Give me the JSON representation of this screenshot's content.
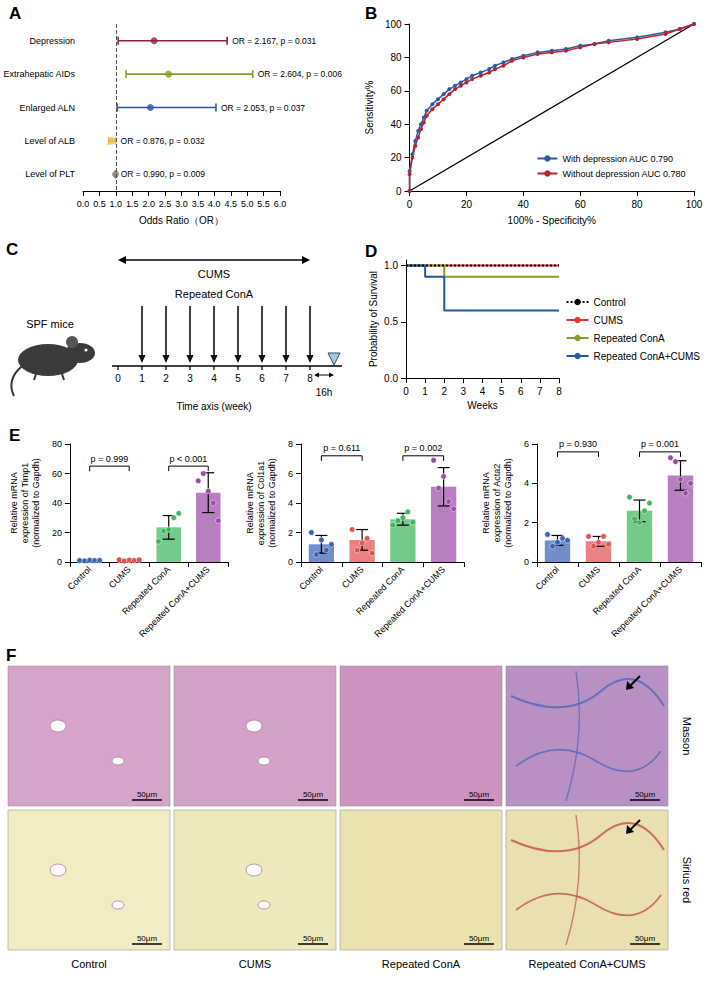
{
  "chart_data": [
    {
      "panel_label": "A",
      "type": "forest",
      "categories": [
        "Depression",
        "Extrahepatic AIDs",
        "Enlarged ALN",
        "Level of ALB",
        "Level of PLT"
      ],
      "values": [
        2.167,
        2.604,
        2.053,
        0.876,
        0.99
      ],
      "ci_lower": [
        1.07,
        1.31,
        1.04,
        0.78,
        0.983
      ],
      "ci_upper": [
        4.39,
        5.17,
        4.05,
        0.99,
        0.997
      ],
      "colors": [
        "#8e1f47",
        "#8f9a23",
        "#2f56a6",
        "#e6b84c",
        "#7f7f7f"
      ],
      "annotations": [
        "OR = 2.167, p = 0.031",
        "OR = 2.604, p = 0.006",
        "OR = 2.053, p = 0.037",
        "OR = 0.876, p = 0.032",
        "OR = 0.990, p = 0.009"
      ],
      "x_label": "Odds Ratio（OR）",
      "xlim": [
        0,
        6
      ],
      "xticks": [
        {
          "value": 0,
          "label": "0.0"
        },
        {
          "value": 0.5,
          "label": "0.5"
        },
        {
          "value": 1,
          "label": "1.0"
        },
        {
          "value": 1.5,
          "label": "1.5"
        },
        {
          "value": 2,
          "label": "2.0"
        },
        {
          "value": 2.5,
          "label": "2.5"
        },
        {
          "value": 3,
          "label": "3.0"
        },
        {
          "value": 3.5,
          "label": "3.5"
        },
        {
          "value": 4,
          "label": "4.0"
        },
        {
          "value": 4.5,
          "label": "4.5"
        },
        {
          "value": 5,
          "label": "5.0"
        },
        {
          "value": 5.5,
          "label": "5.5"
        },
        {
          "value": 6,
          "label": "6.0"
        }
      ],
      "reference_line": 1
    },
    {
      "panel_label": "B",
      "type": "line",
      "x": [
        0,
        0,
        1,
        2,
        3,
        4,
        5,
        6,
        8,
        10,
        12,
        14,
        16,
        18,
        20,
        22,
        25,
        28,
        30,
        33,
        36,
        40,
        45,
        50,
        55,
        60,
        65,
        70,
        80,
        90,
        95,
        100
      ],
      "series": [
        {
          "name": "With depression AUC 0.790",
          "color": "#2a5ca8",
          "values": [
            0,
            12,
            22,
            30,
            36,
            40,
            44,
            48,
            52,
            55,
            58,
            61,
            63,
            65,
            67,
            69,
            71,
            73,
            75,
            77,
            79,
            81,
            83,
            84,
            85,
            87,
            88,
            90,
            92,
            95,
            97,
            100
          ]
        },
        {
          "name": "Without depression AUC 0.780",
          "color": "#b3262e",
          "values": [
            0,
            10,
            20,
            27,
            32,
            37,
            41,
            45,
            49,
            52,
            55,
            58,
            61,
            63,
            65,
            67,
            69,
            71,
            73,
            75,
            78,
            80,
            82,
            83,
            84,
            86,
            88,
            89,
            91,
            94,
            97,
            100
          ]
        }
      ],
      "reference_line": {
        "x": [
          0,
          100
        ],
        "y": [
          0,
          100
        ]
      },
      "marker": "circle",
      "x_label": "100% - Specificity%",
      "y_label": "Sensitivity%",
      "xlim": [
        0,
        100
      ],
      "xticks": [
        0,
        20,
        40,
        60,
        80,
        100
      ],
      "ylim": [
        0,
        100
      ],
      "yticks": [
        0,
        20,
        40,
        60,
        80,
        100
      ],
      "legend": "lower right"
    },
    {
      "panel_label": "D",
      "type": "step",
      "x": [
        0,
        1,
        2,
        3,
        4,
        5,
        6,
        7,
        8
      ],
      "series": [
        {
          "name": "Control",
          "color": "#000000",
          "line_style": "dotted",
          "values": [
            1,
            1,
            1,
            1,
            1,
            1,
            1,
            1,
            1
          ]
        },
        {
          "name": "CUMS",
          "color": "#e3342f",
          "line_style": "solid",
          "values": [
            1,
            1,
            1,
            1,
            1,
            1,
            1,
            1,
            1
          ]
        },
        {
          "name": "Repeated ConA",
          "color": "#8d9a2a",
          "line_style": "solid",
          "values": [
            1,
            1,
            0.9,
            0.9,
            0.9,
            0.9,
            0.9,
            0.9,
            0.9
          ]
        },
        {
          "name": "Repeated ConA+CUMS",
          "color": "#1f5aa6",
          "line_style": "solid",
          "values": [
            1,
            0.9,
            0.6,
            0.6,
            0.6,
            0.6,
            0.6,
            0.6,
            0.6
          ]
        }
      ],
      "x_label": "Weeks",
      "y_label": "Probability of Survival",
      "xlim": [
        0,
        8
      ],
      "xticks": [
        0,
        1,
        2,
        3,
        4,
        5,
        6,
        7,
        8
      ],
      "ylim": [
        0,
        1.05
      ],
      "yticks": [
        {
          "value": 0,
          "label": "0.0"
        },
        {
          "value": 0.5,
          "label": "0.5"
        },
        {
          "value": 1,
          "label": "1.0"
        }
      ],
      "legend": "right"
    },
    {
      "panel_label": "E",
      "type": "bar",
      "categories": [
        "Control",
        "CUMS",
        "Repeated ConA",
        "Repeated ConA+CUMS"
      ],
      "values": [
        1.0,
        1.2,
        23.5,
        47.0
      ],
      "sd": [
        0.2,
        0.5,
        8.0,
        13.5
      ],
      "points": [
        [
          1.0,
          0.8,
          1.2,
          1.0,
          1.1
        ],
        [
          1.5,
          0.7,
          1.3,
          1.0,
          1.5
        ],
        [
          14,
          21,
          22,
          30,
          33
        ],
        [
          55,
          60,
          48,
          40,
          28
        ]
      ],
      "colors": [
        "#3b63b5",
        "#e0524f",
        "#3fb65c",
        "#9b4ea6"
      ],
      "y_label": "Relative mRNA expression of Timp1 (normalized to Gapdh)",
      "ylim": [
        0,
        80
      ],
      "yticks": [
        0,
        20,
        40,
        60,
        80
      ],
      "comparisons": [
        {
          "pair": [
            "Control",
            "CUMS"
          ],
          "y": 65,
          "label": "p = 0.999"
        },
        {
          "pair": [
            "Repeated ConA",
            "Repeated ConA+CUMS"
          ],
          "y": 65,
          "label": "p < 0.001"
        }
      ]
    },
    {
      "type": "bar",
      "categories": [
        "Control",
        "CUMS",
        "Repeated ConA",
        "Repeated ConA+CUMS"
      ],
      "values": [
        1.2,
        1.5,
        2.9,
        5.1
      ],
      "sd": [
        0.6,
        0.7,
        0.4,
        1.3
      ],
      "points": [
        [
          2.0,
          0.5,
          1.5,
          0.8,
          1.2
        ],
        [
          2.2,
          0.8,
          1.3,
          1.6,
          0.6
        ],
        [
          2.5,
          2.8,
          3.0,
          3.4,
          2.7
        ],
        [
          6.9,
          5.0,
          5.8,
          4.1,
          3.6
        ]
      ],
      "colors": [
        "#3b63b5",
        "#e0524f",
        "#3fb65c",
        "#9b4ea6"
      ],
      "y_label": "Relative mRNA expression of Col1a1 (normalized to Gapdh)",
      "ylim": [
        0,
        8
      ],
      "yticks": [
        0,
        2,
        4,
        6,
        8
      ],
      "comparisons": [
        {
          "pair": [
            "Control",
            "CUMS"
          ],
          "y": 7.2,
          "label": "p = 0.611"
        },
        {
          "pair": [
            "Repeated ConA",
            "Repeated ConA+CUMS"
          ],
          "y": 7.2,
          "label": "p = 0.002"
        }
      ]
    },
    {
      "type": "bar",
      "categories": [
        "Control",
        "CUMS",
        "Repeated ConA",
        "Repeated ConA+CUMS"
      ],
      "values": [
        1.1,
        1.05,
        2.6,
        4.4
      ],
      "sd": [
        0.25,
        0.25,
        0.55,
        0.75
      ],
      "points": [
        [
          1.4,
          0.8,
          1.0,
          1.2,
          1.1
        ],
        [
          1.3,
          0.8,
          1.0,
          1.3,
          0.9
        ],
        [
          3.3,
          2.2,
          2.0,
          2.6,
          3.0
        ],
        [
          5.3,
          5.1,
          4.2,
          3.5,
          4.0
        ]
      ],
      "colors": [
        "#3b63b5",
        "#e0524f",
        "#3fb65c",
        "#9b4ea6"
      ],
      "y_label": "Relative mRNA expression of Acta2 (normalized to Gapdh)",
      "ylim": [
        0,
        6
      ],
      "yticks": [
        0,
        2,
        4,
        6
      ],
      "comparisons": [
        {
          "pair": [
            "Control",
            "CUMS"
          ],
          "y": 5.6,
          "label": "p = 0.930"
        },
        {
          "pair": [
            "Repeated ConA",
            "Repeated ConA+CUMS"
          ],
          "y": 5.6,
          "label": "p = 0.001"
        }
      ]
    }
  ],
  "diagram": {
    "panel_label": "C",
    "mouse_label": "SPF mice",
    "span_label": "CUMS",
    "injection_label": "Repeated ConA",
    "injection_weeks": [
      1,
      2,
      3,
      4,
      5,
      6,
      7,
      8
    ],
    "weeks": [
      0,
      1,
      2,
      3,
      4,
      5,
      6,
      7,
      8
    ],
    "axis_label": "Time axis (week)",
    "end_label": "16h"
  },
  "images": {
    "panel_label": "F",
    "rows": [
      "Masson",
      "Sirius red"
    ],
    "columns": [
      "Control",
      "CUMS",
      "Repeated ConA",
      "Repeated ConA+CUMS"
    ],
    "scale_bar": "50μm"
  }
}
